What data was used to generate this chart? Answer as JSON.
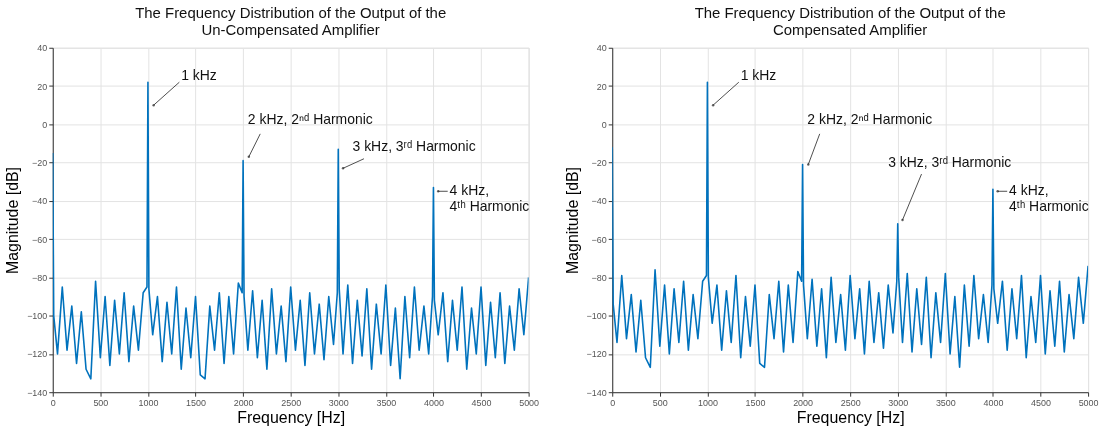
{
  "chart_data": [
    {
      "type": "line",
      "title": "The Frequency Distribution of the Output of the Un-Compensated Amplifier",
      "xlabel": "Frequency [Hz]",
      "ylabel": "Magnitude [dB]",
      "xlim": [
        0,
        5000
      ],
      "ylim": [
        -140,
        40
      ],
      "xticks": [
        0,
        500,
        1000,
        1500,
        2000,
        2500,
        3000,
        3500,
        4000,
        4500,
        5000
      ],
      "yticks": [
        -140,
        -120,
        -100,
        -80,
        -60,
        -40,
        -20,
        0,
        20,
        40
      ],
      "grid": true,
      "marker": "none",
      "line_style": "solid",
      "annotations": [
        {
          "text": "1 kHz",
          "x": 1000,
          "y": 22
        },
        {
          "text": "2 kHz, 2ⁿᵈ Harmonic",
          "x": 2000,
          "y": -19
        },
        {
          "text": "3 kHz, 3ʳᵈ Harmonic",
          "x": 3000,
          "y": -13
        },
        {
          "text": "4 kHz,\n4ᵗʰ Harmonic",
          "x": 4000,
          "y": -33
        }
      ],
      "series": [
        {
          "color": "#0072bd",
          "x": [
            0,
            10,
            50,
            100,
            150,
            200,
            250,
            300,
            350,
            400,
            450,
            500,
            550,
            600,
            650,
            700,
            750,
            800,
            850,
            900,
            950,
            990,
            1000,
            1010,
            1050,
            1100,
            1150,
            1200,
            1250,
            1300,
            1350,
            1400,
            1450,
            1500,
            1550,
            1600,
            1650,
            1700,
            1750,
            1800,
            1850,
            1900,
            1950,
            1990,
            2000,
            2010,
            2050,
            2100,
            2150,
            2200,
            2250,
            2300,
            2350,
            2400,
            2450,
            2500,
            2550,
            2600,
            2650,
            2700,
            2750,
            2800,
            2850,
            2900,
            2950,
            2990,
            3000,
            3010,
            3050,
            3100,
            3150,
            3200,
            3250,
            3300,
            3350,
            3400,
            3450,
            3500,
            3550,
            3600,
            3650,
            3700,
            3750,
            3800,
            3850,
            3900,
            3950,
            3990,
            4000,
            4010,
            4050,
            4100,
            4150,
            4200,
            4250,
            4300,
            4350,
            4400,
            4450,
            4500,
            4550,
            4600,
            4650,
            4700,
            4750,
            4800,
            4850,
            4900,
            4950,
            5000
          ],
          "values": [
            -15,
            -100,
            -120,
            -85,
            -118,
            -95,
            -125,
            -98,
            -128,
            -133,
            -82,
            -122,
            -90,
            -126,
            -92,
            -120,
            -88,
            -124,
            -95,
            -118,
            -88,
            -85,
            22,
            -86,
            -110,
            -90,
            -124,
            -93,
            -120,
            -85,
            -128,
            -96,
            -122,
            -90,
            -131,
            -133,
            -95,
            -118,
            -88,
            -125,
            -90,
            -120,
            -83,
            -88,
            -19,
            -90,
            -118,
            -87,
            -122,
            -92,
            -128,
            -86,
            -120,
            -95,
            -124,
            -85,
            -118,
            -92,
            -126,
            -88,
            -120,
            -94,
            -123,
            -90,
            -115,
            -88,
            -13,
            -86,
            -120,
            -84,
            -125,
            -92,
            -121,
            -86,
            -128,
            -94,
            -120,
            -84,
            -126,
            -96,
            -133,
            -90,
            -122,
            -85,
            -118,
            -95,
            -120,
            -90,
            -33,
            -92,
            -110,
            -88,
            -124,
            -92,
            -118,
            -85,
            -128,
            -96,
            -120,
            -85,
            -126,
            -93,
            -122,
            -88,
            -125,
            -95,
            -118,
            -86,
            -110,
            -80
          ]
        }
      ]
    },
    {
      "type": "line",
      "title": "The Frequency Distribution of the Output of the Compensated Amplifier",
      "xlabel": "Frequency [Hz]",
      "ylabel": "Magnitude [dB]",
      "xlim": [
        0,
        5000
      ],
      "ylim": [
        -140,
        40
      ],
      "xticks": [
        0,
        500,
        1000,
        1500,
        2000,
        2500,
        3000,
        3500,
        4000,
        4500,
        5000
      ],
      "yticks": [
        -140,
        -120,
        -100,
        -80,
        -60,
        -40,
        -20,
        0,
        20,
        40
      ],
      "grid": true,
      "marker": "none",
      "line_style": "solid",
      "annotations": [
        {
          "text": "1 kHz",
          "x": 1000,
          "y": 22
        },
        {
          "text": "2 kHz, 2ⁿᵈ Harmonic",
          "x": 2000,
          "y": -21
        },
        {
          "text": "3 kHz, 3ʳᵈ Harmonic",
          "x": 3000,
          "y": -52
        },
        {
          "text": "4 kHz,\n4ᵗʰ Harmonic",
          "x": 4000,
          "y": -34
        }
      ],
      "series": [
        {
          "color": "#0072bd",
          "x": [
            0,
            10,
            50,
            100,
            150,
            200,
            250,
            300,
            350,
            400,
            450,
            500,
            550,
            600,
            650,
            700,
            750,
            800,
            850,
            900,
            950,
            990,
            1000,
            1010,
            1050,
            1100,
            1150,
            1200,
            1250,
            1300,
            1350,
            1400,
            1450,
            1500,
            1550,
            1600,
            1650,
            1700,
            1750,
            1800,
            1850,
            1900,
            1950,
            1990,
            2000,
            2010,
            2050,
            2100,
            2150,
            2200,
            2250,
            2300,
            2350,
            2400,
            2450,
            2500,
            2550,
            2600,
            2650,
            2700,
            2750,
            2800,
            2850,
            2900,
            2950,
            2990,
            3000,
            3010,
            3050,
            3100,
            3150,
            3200,
            3250,
            3300,
            3350,
            3400,
            3450,
            3500,
            3550,
            3600,
            3650,
            3700,
            3750,
            3800,
            3850,
            3900,
            3950,
            3990,
            4000,
            4010,
            4050,
            4100,
            4150,
            4200,
            4250,
            4300,
            4350,
            4400,
            4450,
            4500,
            4550,
            4600,
            4650,
            4700,
            4750,
            4800,
            4850,
            4900,
            4950,
            5000
          ],
          "values": [
            -12,
            -94,
            -114,
            -79,
            -112,
            -89,
            -119,
            -92,
            -122,
            -127,
            -76,
            -116,
            -84,
            -120,
            -86,
            -114,
            -82,
            -118,
            -89,
            -112,
            -82,
            -79,
            22,
            -80,
            -104,
            -84,
            -118,
            -87,
            -114,
            -79,
            -122,
            -90,
            -116,
            -84,
            -125,
            -127,
            -89,
            -112,
            -82,
            -119,
            -84,
            -114,
            -77,
            -82,
            -21,
            -84,
            -112,
            -81,
            -116,
            -86,
            -122,
            -80,
            -114,
            -89,
            -118,
            -79,
            -112,
            -86,
            -120,
            -82,
            -114,
            -88,
            -117,
            -84,
            -109,
            -82,
            -52,
            -80,
            -114,
            -78,
            -119,
            -86,
            -115,
            -80,
            -122,
            -88,
            -114,
            -78,
            -120,
            -90,
            -127,
            -84,
            -116,
            -79,
            -112,
            -89,
            -114,
            -84,
            -34,
            -86,
            -104,
            -82,
            -118,
            -86,
            -112,
            -79,
            -122,
            -90,
            -114,
            -79,
            -120,
            -87,
            -116,
            -82,
            -119,
            -89,
            -112,
            -80,
            -104,
            -74
          ]
        }
      ]
    }
  ]
}
